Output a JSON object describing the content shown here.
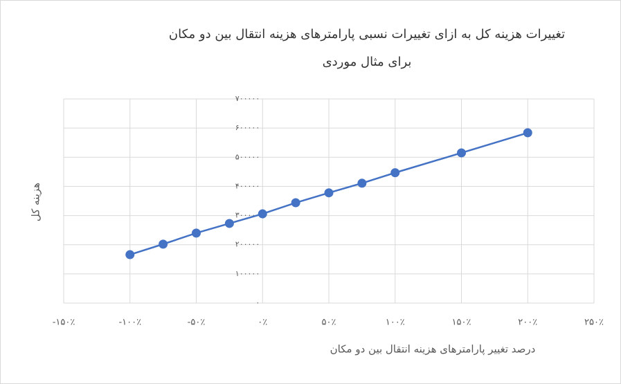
{
  "chart_data": {
    "type": "line",
    "title": "تغییرات هزینه کل به ازای تغییرات نسبی پارامترهای هزینه انتقال بین دو مکان برای مثال موردی",
    "x_label": "درصد تغییر پارامترهای هزینه انتقال بین دو مکان",
    "y_label": "هزینه کل",
    "x": [
      -100,
      -75,
      -50,
      -25,
      0,
      25,
      50,
      75,
      100,
      150,
      200
    ],
    "series": [
      {
        "color": "#4472c4",
        "values": [
          166000,
          202000,
          240000,
          273000,
          306000,
          344000,
          378000,
          411000,
          447000,
          515000,
          584000
        ]
      }
    ],
    "xlim": [
      -150,
      250
    ],
    "xticks": [
      {
        "value": -150,
        "label": "-۱۵۰٪"
      },
      {
        "value": -100,
        "label": "-۱۰۰٪"
      },
      {
        "value": -50,
        "label": "-۵۰٪"
      },
      {
        "value": 0,
        "label": "۰٪"
      },
      {
        "value": 50,
        "label": "۵۰٪"
      },
      {
        "value": 100,
        "label": "۱۰۰٪"
      },
      {
        "value": 150,
        "label": "۱۵۰٪"
      },
      {
        "value": 200,
        "label": "۲۰۰٪"
      },
      {
        "value": 250,
        "label": "۲۵۰٪"
      }
    ],
    "ylim": [
      0,
      700000
    ],
    "yticks": [
      {
        "value": 0,
        "label": "۰"
      },
      {
        "value": 100000,
        "label": "۱۰۰۰۰۰"
      },
      {
        "value": 200000,
        "label": "۲۰۰۰۰۰"
      },
      {
        "value": 300000,
        "label": "۳۰۰۰۰۰"
      },
      {
        "value": 400000,
        "label": "۴۰۰۰۰۰"
      },
      {
        "value": 500000,
        "label": "۵۰۰۰۰۰"
      },
      {
        "value": 600000,
        "label": "۶۰۰۰۰۰"
      },
      {
        "value": 700000,
        "label": "۷۰۰۰۰۰"
      }
    ],
    "grid": true
  }
}
